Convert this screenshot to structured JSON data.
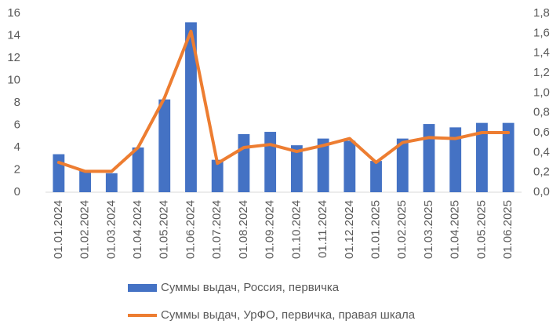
{
  "chart_data": {
    "type": "bar",
    "categories": [
      "01.01.2024",
      "01.02.2024",
      "01.03.2024",
      "01.04.2024",
      "01.05.2024",
      "01.06.2024",
      "01.07.2024",
      "01.08.2024",
      "01.09.2024",
      "01.10.2024",
      "01.11.2024",
      "01.12.2024",
      "01.01.2025",
      "01.02.2025",
      "01.03.2025",
      "01.04.2025",
      "01.05.2025",
      "01.06.2025"
    ],
    "series": [
      {
        "name": "Суммы выдач, Россия, первичка",
        "type": "bar",
        "color": "#4472c4",
        "values": [
          3.4,
          2.0,
          1.7,
          4.0,
          8.3,
          15.2,
          2.9,
          5.2,
          5.4,
          4.2,
          4.8,
          4.6,
          2.8,
          4.8,
          6.1,
          5.8,
          6.2,
          6.2
        ]
      },
      {
        "name": "Суммы выдач, УрФО, первичка, правая шкала",
        "type": "line",
        "axis": "y2",
        "color": "#ed7d31",
        "values": [
          0.3,
          0.21,
          0.21,
          0.45,
          0.95,
          1.62,
          0.29,
          0.45,
          0.48,
          0.41,
          0.47,
          0.54,
          0.3,
          0.5,
          0.55,
          0.54,
          0.6,
          0.6
        ]
      }
    ],
    "ylim": [
      0,
      16
    ],
    "yticks": [
      0,
      2,
      4,
      6,
      8,
      10,
      12,
      14,
      16
    ],
    "y2lim": [
      0,
      1.8
    ],
    "y2ticks": [
      {
        "value": 0,
        "label": "0,0"
      },
      {
        "value": 0.2,
        "label": "0,2"
      },
      {
        "value": 0.4,
        "label": "0,4"
      },
      {
        "value": 0.6,
        "label": "0,6"
      },
      {
        "value": 0.8,
        "label": "0,8"
      },
      {
        "value": 1.0,
        "label": "1,0"
      },
      {
        "value": 1.2,
        "label": "1,2"
      },
      {
        "value": 1.4,
        "label": "1,4"
      },
      {
        "value": 1.6,
        "label": "1,6"
      },
      {
        "value": 1.8,
        "label": "1,8"
      }
    ]
  }
}
